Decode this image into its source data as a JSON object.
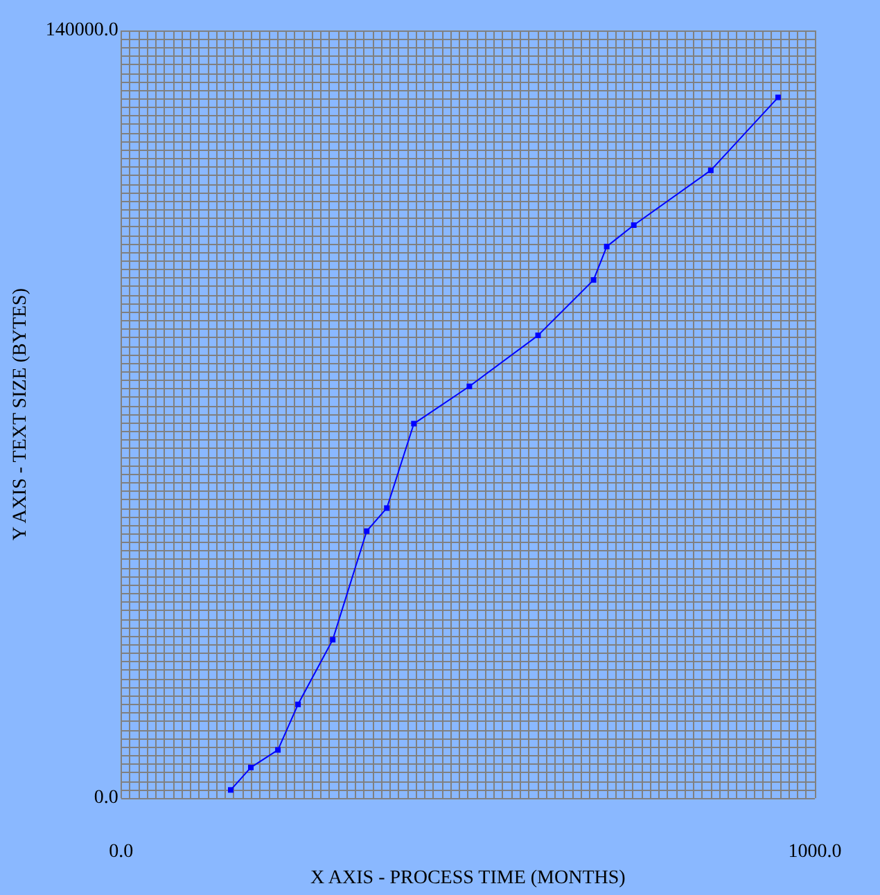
{
  "chart_data": {
    "type": "line",
    "xlabel": "X AXIS - PROCESS TIME (MONTHS)",
    "ylabel": "Y AXIS - TEXT SIZE (BYTES)",
    "xlim": [
      0,
      1000
    ],
    "ylim": [
      0,
      140000
    ],
    "xticks": [
      {
        "value": 0,
        "label": "0.0"
      },
      {
        "value": 1000,
        "label": "1000.0"
      }
    ],
    "yticks": [
      {
        "value": 0,
        "label": "0.0"
      },
      {
        "value": 140000,
        "label": "140000.0"
      }
    ],
    "grid": true,
    "marker": "square",
    "line_style": "solid",
    "series": [
      {
        "color": "#0000ff",
        "x": [
          158,
          187,
          226,
          255,
          305,
          354,
          383,
          422,
          502,
          601,
          681,
          700,
          739,
          850,
          947
        ],
        "values": [
          1500,
          5600,
          8800,
          17100,
          28900,
          48700,
          52900,
          68300,
          75100,
          84400,
          94500,
          100600,
          104500,
          114500,
          127800
        ]
      }
    ]
  }
}
